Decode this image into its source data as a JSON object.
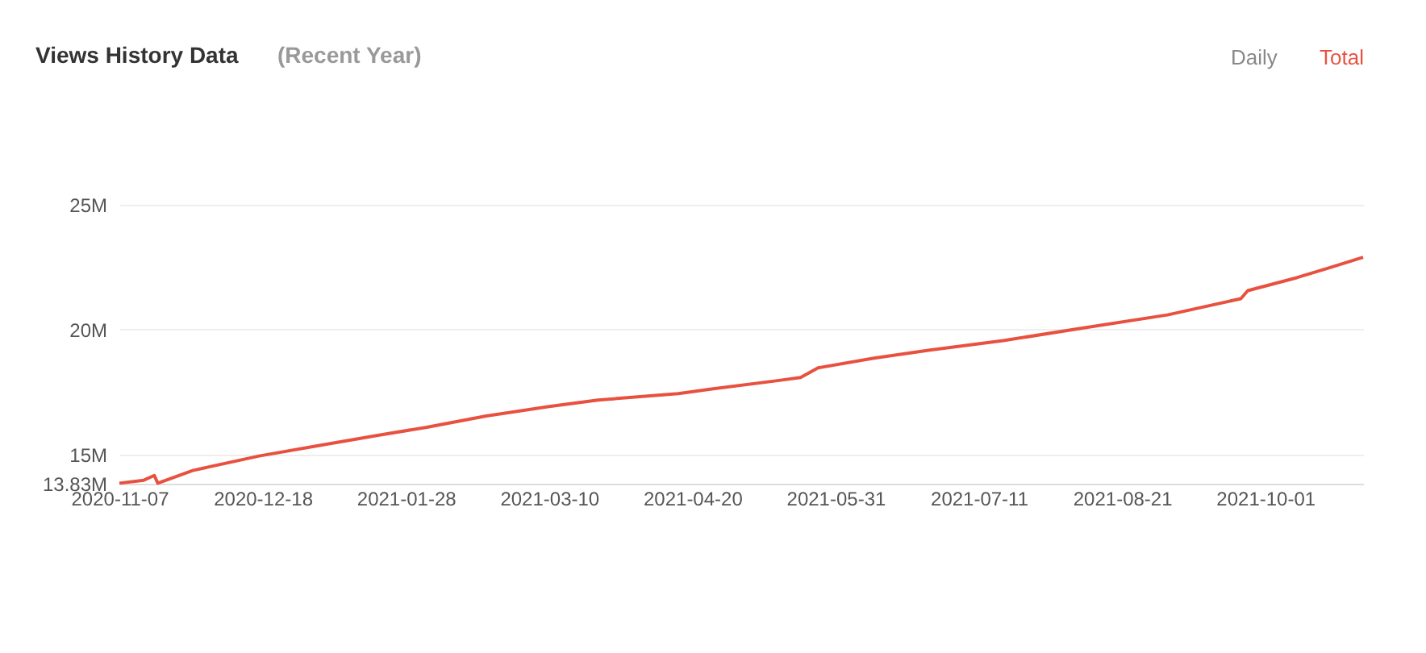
{
  "chart_data": {
    "type": "line",
    "title": "Views History Data",
    "subtitle": "(Recent Year)",
    "annotations": [
      "Daily",
      "Total"
    ],
    "x": [
      "2020-11-07",
      "2020-11-14",
      "2020-11-17",
      "2020-11-18",
      "2020-11-28",
      "2020-12-17",
      "2021-01-04",
      "2021-01-20",
      "2021-02-03",
      "2021-02-20",
      "2021-03-10",
      "2021-03-24",
      "2021-04-16",
      "2021-04-26",
      "2021-05-14",
      "2021-05-21",
      "2021-05-26",
      "2021-06-11",
      "2021-06-27",
      "2021-07-18",
      "2021-08-10",
      "2021-09-03",
      "2021-09-24",
      "2021-09-26",
      "2021-10-10",
      "2021-10-19",
      "2021-10-29"
    ],
    "series": [
      {
        "color": "#e8513f",
        "values": [
          13.85,
          13.97,
          14.16,
          13.85,
          14.36,
          14.94,
          15.38,
          15.77,
          16.09,
          16.54,
          16.92,
          17.18,
          17.44,
          17.63,
          17.95,
          18.08,
          18.47,
          18.86,
          19.18,
          19.56,
          20.07,
          20.59,
          21.24,
          21.56,
          22.08,
          22.46,
          22.9
        ]
      }
    ],
    "xlim": [
      "2020-11-07",
      "2021-10-29"
    ],
    "xticks": [
      "2020-11-07",
      "2020-12-18",
      "2021-01-28",
      "2021-03-10",
      "2021-04-20",
      "2021-05-31",
      "2021-07-11",
      "2021-08-21",
      "2021-10-01"
    ],
    "ylim": [
      13.83,
      25
    ],
    "yticks": [
      {
        "value": 13.83,
        "label": "13.83M"
      },
      {
        "value": 15,
        "label": "15M"
      },
      {
        "value": 20,
        "label": "20M"
      },
      {
        "value": 25,
        "label": "25M"
      }
    ],
    "grid": "y",
    "marker": "none",
    "line_style": "solid"
  }
}
